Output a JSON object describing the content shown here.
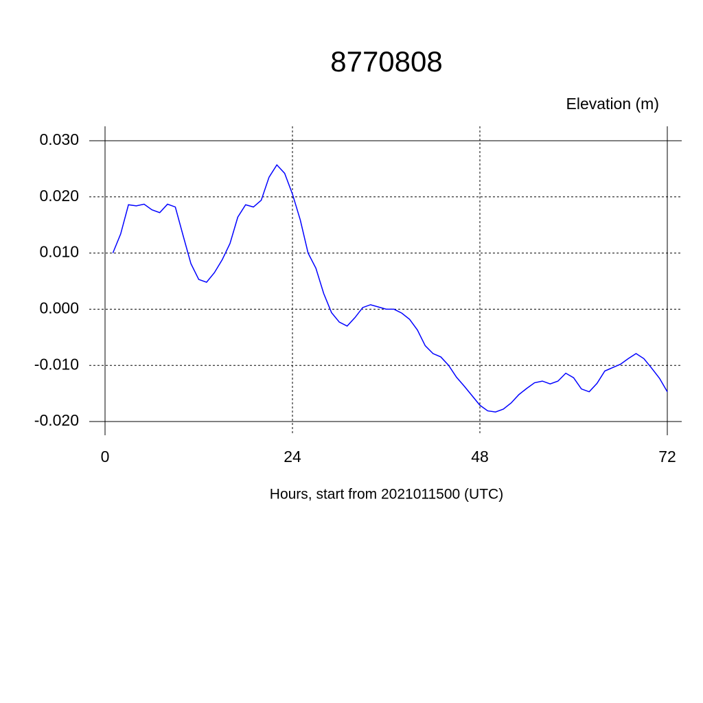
{
  "chart_data": {
    "type": "line",
    "title": "8770808",
    "y_label": "Elevation (m)",
    "x_label": "Hours, start from 2021011500 (UTC)",
    "x": [
      1,
      2,
      3,
      4,
      5,
      6,
      7,
      8,
      9,
      10,
      11,
      12,
      13,
      14,
      15,
      16,
      17,
      18,
      19,
      20,
      21,
      22,
      23,
      24,
      25,
      26,
      27,
      28,
      29,
      30,
      31,
      32,
      33,
      34,
      35,
      36,
      37,
      38,
      39,
      40,
      41,
      42,
      43,
      44,
      45,
      46,
      47,
      48,
      49,
      50,
      51,
      52,
      53,
      54,
      55,
      56,
      57,
      58,
      59,
      60,
      61,
      62,
      63,
      64,
      65,
      66,
      67,
      68,
      69,
      70,
      71,
      72
    ],
    "series": [
      {
        "color": "#0000ff",
        "values": [
          0.01,
          0.0134,
          0.0186,
          0.0184,
          0.0187,
          0.0177,
          0.0172,
          0.0187,
          0.0182,
          0.0131,
          0.0081,
          0.0053,
          0.0048,
          0.0065,
          0.0088,
          0.0117,
          0.0164,
          0.0186,
          0.0182,
          0.0194,
          0.0235,
          0.0257,
          0.0242,
          0.0205,
          0.0159,
          0.01,
          0.0073,
          0.0028,
          -0.0006,
          -0.0023,
          -0.003,
          -0.0015,
          0.0003,
          0.0008,
          0.0004,
          0.0,
          0.0,
          -0.0007,
          -0.0018,
          -0.0037,
          -0.0065,
          -0.0079,
          -0.0085,
          -0.01,
          -0.0121,
          -0.0137,
          -0.0154,
          -0.0171,
          -0.0181,
          -0.0183,
          -0.0178,
          -0.0167,
          -0.0152,
          -0.0141,
          -0.0131,
          -0.0128,
          -0.0133,
          -0.0128,
          -0.0114,
          -0.0122,
          -0.0142,
          -0.0147,
          -0.0132,
          -0.011,
          -0.0104,
          -0.0098,
          -0.0088,
          -0.0079,
          -0.0088,
          -0.0105,
          -0.0123,
          -0.0147
        ]
      }
    ],
    "xlim": [
      0,
      72
    ],
    "xticks": [
      0,
      24,
      48,
      72
    ],
    "ylim": [
      -0.02,
      0.03
    ],
    "yticks": [
      {
        "value": -0.02,
        "label": "-0.020"
      },
      {
        "value": -0.01,
        "label": "-0.010"
      },
      {
        "value": 0,
        "label": "0.000"
      },
      {
        "value": 0.01,
        "label": "0.010"
      },
      {
        "value": 0.02,
        "label": "0.020"
      },
      {
        "value": 0.03,
        "label": "0.030"
      }
    ],
    "grid": true
  }
}
